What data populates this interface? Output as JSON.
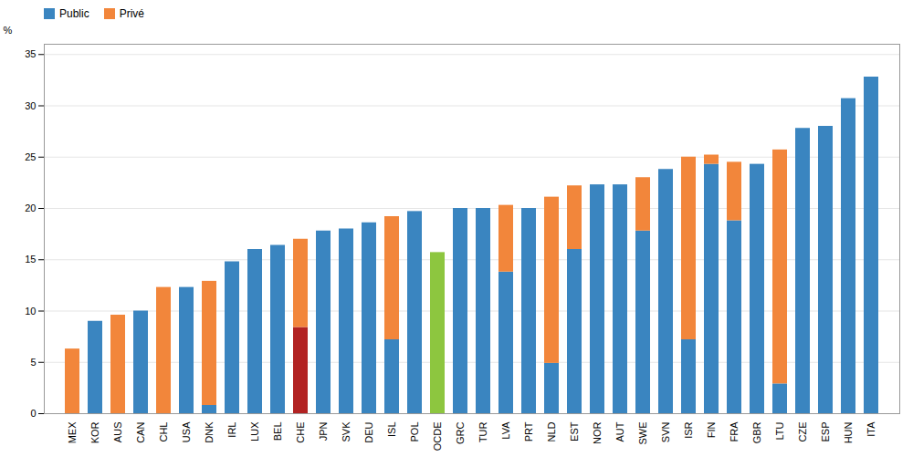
{
  "chart_data": {
    "type": "bar",
    "stacked": true,
    "y_label": "%",
    "categories": [
      "MEX",
      "KOR",
      "AUS",
      "CAN",
      "CHL",
      "USA",
      "DNK",
      "IRL",
      "LUX",
      "BEL",
      "CHE",
      "JPN",
      "SVK",
      "DEU",
      "ISL",
      "POL",
      "OCDE",
      "GRC",
      "TUR",
      "LVA",
      "PRT",
      "NLD",
      "EST",
      "NOR",
      "AUT",
      "SWE",
      "SVN",
      "ISR",
      "FIN",
      "FRA",
      "GBR",
      "LTU",
      "CZE",
      "ESP",
      "HUN",
      "ITA"
    ],
    "series": [
      {
        "name": "Public",
        "color": "#3A85C0",
        "colors": [
          "#3A85C0",
          "#3A85C0",
          "#3A85C0",
          "#3A85C0",
          "#3A85C0",
          "#3A85C0",
          "#3A85C0",
          "#3A85C0",
          "#3A85C0",
          "#3A85C0",
          "#B22222",
          "#3A85C0",
          "#3A85C0",
          "#3A85C0",
          "#3A85C0",
          "#3A85C0",
          "#8DC63F",
          "#3A85C0",
          "#3A85C0",
          "#3A85C0",
          "#3A85C0",
          "#3A85C0",
          "#3A85C0",
          "#3A85C0",
          "#3A85C0",
          "#3A85C0",
          "#3A85C0",
          "#3A85C0",
          "#3A85C0",
          "#3A85C0",
          "#3A85C0",
          "#3A85C0",
          "#3A85C0",
          "#3A85C0",
          "#3A85C0",
          "#3A85C0"
        ],
        "values": [
          0.0,
          9.0,
          0.0,
          10.0,
          0.0,
          12.3,
          0.8,
          14.8,
          16.0,
          16.4,
          8.4,
          17.8,
          18.0,
          18.6,
          7.2,
          19.7,
          15.7,
          20.0,
          20.0,
          13.8,
          20.0,
          4.9,
          16.0,
          22.3,
          22.3,
          17.8,
          23.8,
          7.2,
          24.3,
          18.8,
          24.3,
          2.9,
          27.8,
          28.0,
          30.7,
          32.8
        ]
      },
      {
        "name": "Privé",
        "color": "#F2863B",
        "values": [
          6.3,
          0.0,
          9.6,
          0.0,
          12.3,
          0.0,
          12.1,
          0.0,
          0.0,
          0.0,
          8.6,
          0.0,
          0.0,
          0.0,
          12.0,
          0.0,
          0.0,
          0.0,
          0.0,
          6.5,
          0.0,
          16.2,
          6.2,
          0.0,
          0.0,
          5.2,
          0.0,
          17.8,
          0.9,
          5.7,
          0.0,
          22.8,
          0.0,
          0.0,
          0.0,
          0.0
        ]
      }
    ],
    "ylim": [
      0,
      36
    ],
    "yticks": [
      0,
      5,
      10,
      15,
      20,
      25,
      30,
      35
    ],
    "grid": true,
    "legend": "upper left"
  }
}
